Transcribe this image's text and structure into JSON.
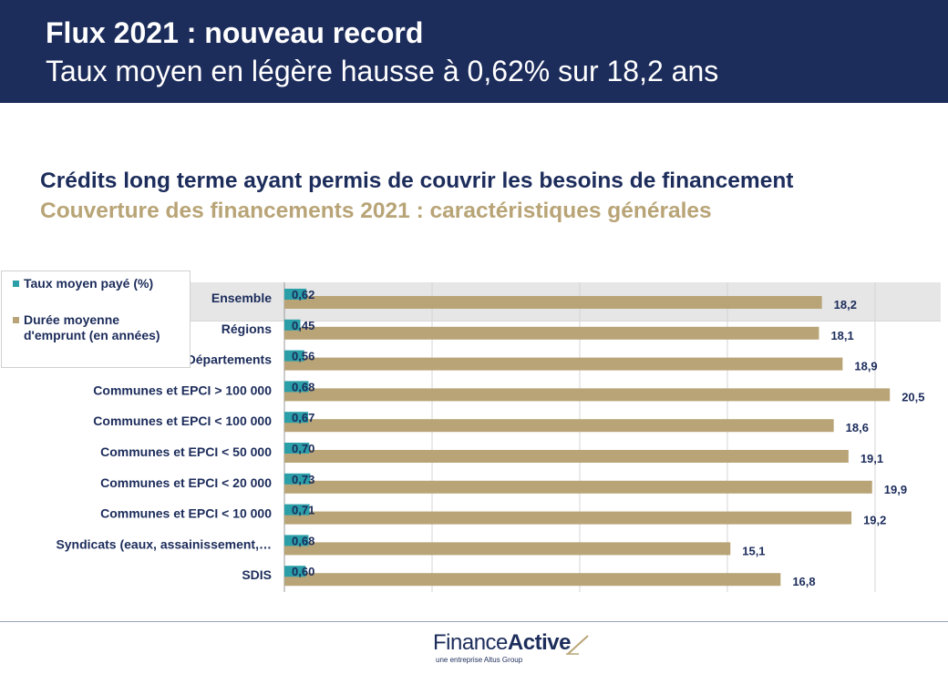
{
  "header": {
    "title": "Flux 2021 : nouveau record",
    "subtitle": "Taux moyen en légère hausse à 0,62% sur 18,2 ans"
  },
  "section": {
    "title": "Crédits long terme ayant permis de couvrir les besoins de financement",
    "subtitle": "Couverture des financements 2021 : caractéristiques générales"
  },
  "legend": {
    "rate_label": "Taux moyen payé (%)",
    "duration_label_line1": "Durée moyenne",
    "duration_label_line2": "d'emprunt (en années)"
  },
  "colors": {
    "header_bg": "#1c2c5b",
    "rate": "#2a9fa8",
    "duration": "#b8a476",
    "highlight": "#e6e6e6"
  },
  "chart_data": {
    "type": "bar",
    "orientation": "horizontal",
    "categories": [
      "Ensemble",
      "Régions",
      "Départements",
      "Communes et EPCI > 100 000",
      "Communes et EPCI < 100 000",
      "Communes et EPCI < 50 000",
      "Communes et EPCI < 20 000",
      "Communes et EPCI < 10 000",
      "Syndicats (eaux, assainissement,…",
      "SDIS"
    ],
    "series": [
      {
        "name": "Taux moyen payé (%)",
        "values": [
          0.62,
          0.45,
          0.56,
          0.68,
          0.67,
          0.7,
          0.73,
          0.71,
          0.68,
          0.6
        ],
        "labels": [
          "0,62",
          "0,45",
          "0,56",
          "0,68",
          "0,67",
          "0,70",
          "0,73",
          "0,71",
          "0,68",
          "0,60"
        ]
      },
      {
        "name": "Durée moyenne d'emprunt (en années)",
        "values": [
          18.2,
          18.1,
          18.9,
          20.5,
          18.6,
          19.1,
          19.9,
          19.2,
          15.1,
          16.8
        ],
        "labels": [
          "18,2",
          "18,1",
          "18,9",
          "20,5",
          "18,6",
          "19,1",
          "19,9",
          "19,2",
          "15,1",
          "16,8"
        ]
      }
    ],
    "xlim": [
      0,
      20
    ],
    "grid": true,
    "highlighted_category": "Ensemble",
    "legend_position": "top-left"
  },
  "footer": {
    "logo_finance": "Finance",
    "logo_active": "Active",
    "logo_tagline": "une entreprise Altus Group"
  }
}
